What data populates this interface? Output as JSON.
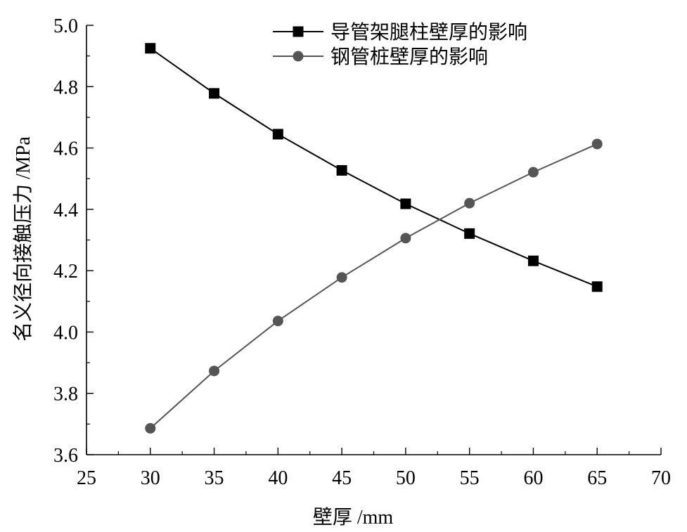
{
  "chart_data": {
    "type": "line",
    "xlabel": "壁厚 /mm",
    "ylabel": "名义径向接触压力 /MPa",
    "xlim": [
      25,
      70
    ],
    "ylim": [
      3.6,
      5.0
    ],
    "x_ticks": [
      "25",
      "30",
      "35",
      "40",
      "45",
      "50",
      "55",
      "60",
      "65",
      "70"
    ],
    "y_ticks": [
      "3.6",
      "3.8",
      "4.0",
      "4.2",
      "4.4",
      "4.6",
      "4.8",
      "5.0"
    ],
    "grid": false,
    "legend_position": "top-right",
    "x": [
      30,
      35,
      40,
      45,
      50,
      55,
      60,
      65
    ],
    "series": [
      {
        "name": "导管架腿柱壁厚的影响",
        "marker": "square",
        "color": "#000000",
        "values": [
          4.925,
          4.778,
          4.645,
          4.527,
          4.418,
          4.321,
          4.232,
          4.148
        ]
      },
      {
        "name": "钢管桩壁厚的影响",
        "marker": "circle",
        "color": "#555555",
        "values": [
          3.686,
          3.873,
          4.036,
          4.178,
          4.306,
          4.42,
          4.521,
          4.613
        ]
      }
    ]
  }
}
